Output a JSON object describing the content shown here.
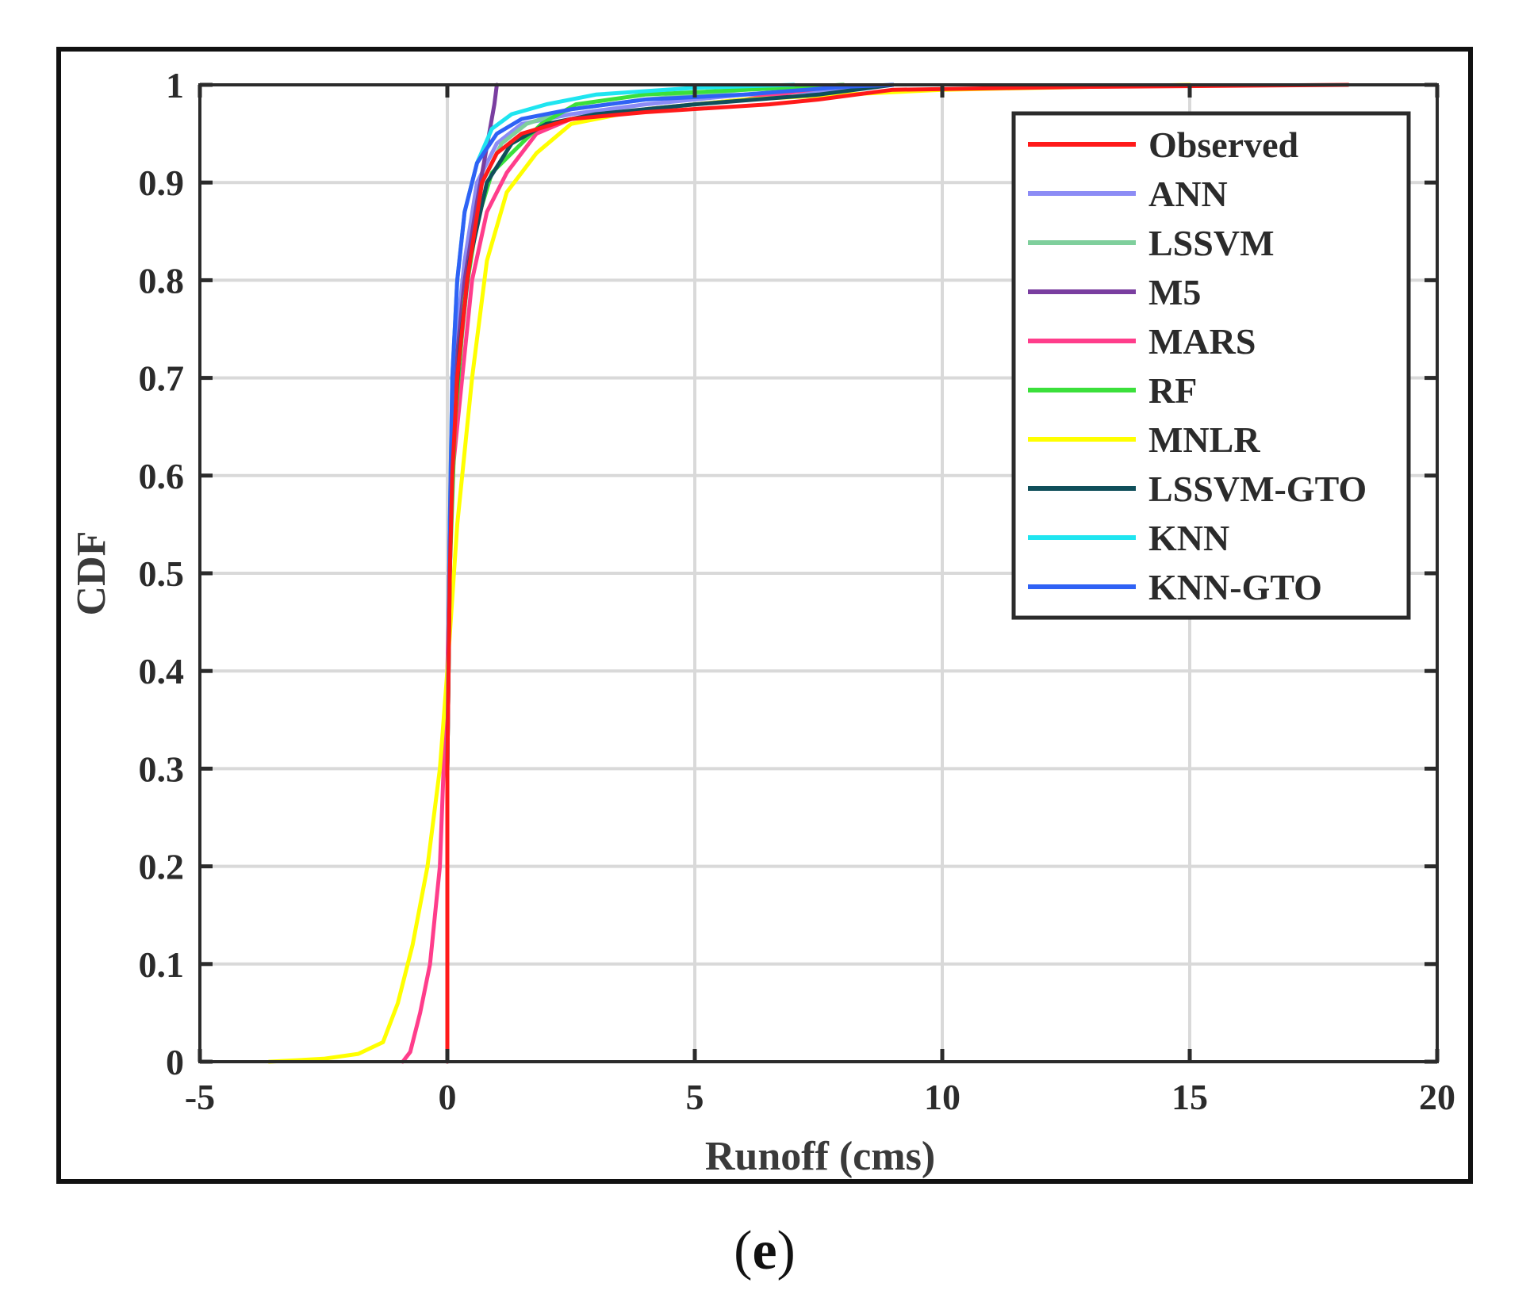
{
  "panel_label": {
    "open": "(",
    "letter": "e",
    "close": ")"
  },
  "chart_data": {
    "type": "line",
    "xlabel": "Runoff (cms)",
    "ylabel": "CDF",
    "xlim": [
      -5,
      20
    ],
    "ylim": [
      0,
      1
    ],
    "xticks": [
      -5,
      0,
      5,
      10,
      15,
      20
    ],
    "xtick_labels": [
      "-5",
      "0",
      "5",
      "10",
      "15",
      "20"
    ],
    "yticks": [
      0,
      0.1,
      0.2,
      0.3,
      0.4,
      0.5,
      0.6,
      0.7,
      0.8,
      0.9,
      1
    ],
    "ytick_labels": [
      "0",
      "0.1",
      "0.2",
      "0.3",
      "0.4",
      "0.5",
      "0.6",
      "0.7",
      "0.8",
      "0.9",
      "1"
    ],
    "grid": true,
    "legend_position": "top-right",
    "series": [
      {
        "name": "Observed",
        "color": "#ff1a1a",
        "x": [
          0.0,
          0.0,
          0.05,
          0.1,
          0.2,
          0.4,
          0.7,
          1.0,
          1.5,
          2.5,
          4.0,
          6.5,
          7.5,
          9.0,
          13.0,
          18.2
        ],
        "y": [
          0.0,
          0.3,
          0.5,
          0.6,
          0.7,
          0.8,
          0.9,
          0.93,
          0.95,
          0.965,
          0.972,
          0.98,
          0.985,
          0.995,
          0.998,
          1.0
        ]
      },
      {
        "name": "ANN",
        "color": "#8c8cf5",
        "x": [
          0.0,
          0.0,
          0.05,
          0.1,
          0.2,
          0.35,
          0.6,
          1.0,
          1.5,
          2.5,
          4.0,
          6.0,
          8.0,
          9.0
        ],
        "y": [
          0.0,
          0.3,
          0.5,
          0.65,
          0.75,
          0.82,
          0.9,
          0.94,
          0.96,
          0.97,
          0.98,
          0.99,
          0.995,
          1.0
        ]
      },
      {
        "name": "LSSVM",
        "color": "#7fcf9c",
        "x": [
          0.0,
          0.0,
          0.05,
          0.1,
          0.25,
          0.45,
          0.7,
          1.1,
          1.6,
          2.5,
          4.0,
          6.0,
          8.0
        ],
        "y": [
          0.0,
          0.3,
          0.5,
          0.6,
          0.72,
          0.82,
          0.9,
          0.94,
          0.96,
          0.975,
          0.985,
          0.995,
          1.0
        ]
      },
      {
        "name": "M5",
        "color": "#7a3ea0",
        "x": [
          0.0,
          0.0,
          0.05,
          0.15,
          0.35,
          0.6,
          0.95,
          1.0
        ],
        "y": [
          0.0,
          0.35,
          0.55,
          0.7,
          0.8,
          0.88,
          0.98,
          1.0
        ]
      },
      {
        "name": "MARS",
        "color": "#ff3d8b",
        "x": [
          -0.9,
          -0.75,
          -0.55,
          -0.35,
          -0.15,
          0.0,
          0.1,
          0.3,
          0.5,
          0.8,
          1.2,
          1.8,
          2.5,
          4.0,
          6.0,
          8.0
        ],
        "y": [
          0.0,
          0.01,
          0.05,
          0.1,
          0.2,
          0.4,
          0.6,
          0.7,
          0.8,
          0.87,
          0.91,
          0.95,
          0.965,
          0.975,
          0.985,
          1.0
        ]
      },
      {
        "name": "RF",
        "color": "#3be03b",
        "x": [
          0.0,
          0.0,
          0.05,
          0.15,
          0.35,
          0.6,
          0.9,
          1.3,
          1.9,
          2.6,
          4.0,
          6.0,
          8.0
        ],
        "y": [
          0.0,
          0.3,
          0.5,
          0.65,
          0.78,
          0.86,
          0.91,
          0.93,
          0.96,
          0.98,
          0.99,
          0.995,
          1.0
        ]
      },
      {
        "name": "MNLR",
        "color": "#ffff00",
        "x": [
          -3.6,
          -2.5,
          -1.8,
          -1.3,
          -1.0,
          -0.7,
          -0.4,
          -0.15,
          0.0,
          0.2,
          0.5,
          0.8,
          1.2,
          1.8,
          2.5,
          4.0,
          6.0,
          10.0,
          15.0
        ],
        "y": [
          0.0,
          0.003,
          0.008,
          0.02,
          0.06,
          0.12,
          0.2,
          0.3,
          0.4,
          0.55,
          0.7,
          0.82,
          0.89,
          0.93,
          0.96,
          0.975,
          0.985,
          0.995,
          1.0
        ]
      },
      {
        "name": "LSSVM-GTO",
        "color": "#0f4f5a",
        "x": [
          0.0,
          0.0,
          0.05,
          0.1,
          0.25,
          0.45,
          0.8,
          1.3,
          2.0,
          3.0,
          5.0,
          7.5,
          9.0
        ],
        "y": [
          0.0,
          0.3,
          0.5,
          0.62,
          0.73,
          0.82,
          0.9,
          0.94,
          0.96,
          0.97,
          0.98,
          0.99,
          1.0
        ]
      },
      {
        "name": "KNN",
        "color": "#1fe5f0",
        "x": [
          0.0,
          0.0,
          0.05,
          0.1,
          0.2,
          0.35,
          0.6,
          0.9,
          1.3,
          2.0,
          3.0,
          5.0,
          7.0
        ],
        "y": [
          0.0,
          0.3,
          0.55,
          0.7,
          0.8,
          0.87,
          0.92,
          0.955,
          0.97,
          0.98,
          0.99,
          0.997,
          1.0
        ]
      },
      {
        "name": "KNN-GTO",
        "color": "#2f62f5",
        "x": [
          0.0,
          0.0,
          0.05,
          0.1,
          0.2,
          0.35,
          0.6,
          1.0,
          1.5,
          2.5,
          4.0,
          6.0,
          8.0,
          9.0
        ],
        "y": [
          0.0,
          0.3,
          0.55,
          0.7,
          0.8,
          0.87,
          0.92,
          0.95,
          0.965,
          0.975,
          0.985,
          0.99,
          0.998,
          1.0
        ]
      }
    ]
  }
}
